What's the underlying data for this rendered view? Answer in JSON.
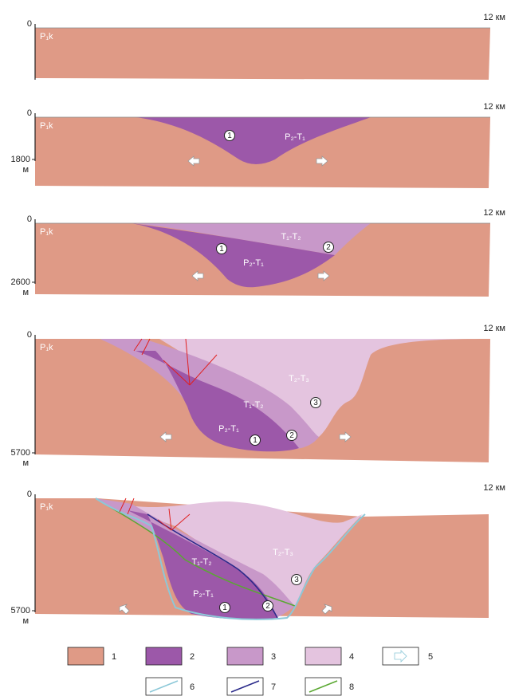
{
  "panels": [
    {
      "top_left": "0",
      "top_right": "12 км",
      "formation": "P₁k"
    },
    {
      "top_left": "0",
      "top_right": "12 км",
      "formation": "P₁k",
      "depth": "1800",
      "depth_unit": "м",
      "units": [
        "P₂-T₁"
      ],
      "markers": [
        "1"
      ]
    },
    {
      "top_left": "0",
      "top_right": "12 км",
      "formation": "P₁k",
      "depth": "2600",
      "depth_unit": "м",
      "units": [
        "T₁-T₂",
        "P₂-T₁"
      ],
      "markers": [
        "1",
        "2"
      ]
    },
    {
      "top_left": "0",
      "top_right": "12 км",
      "formation": "P₁k",
      "depth": "5700",
      "depth_unit": "м",
      "units": [
        "T₂-T₃",
        "T₁-T₂",
        "P₂-T₁"
      ],
      "markers": [
        "1",
        "2",
        "3"
      ]
    },
    {
      "top_left": "0",
      "top_right": "12 км",
      "formation": "P₁k",
      "depth": "5700",
      "depth_unit": "м",
      "units": [
        "T₂-T₃",
        "T₁-T₂",
        "P₂-T₁"
      ],
      "markers": [
        "1",
        "2",
        "3"
      ]
    }
  ],
  "legend": [
    "1",
    "2",
    "3",
    "4",
    "5",
    "6",
    "7",
    "8"
  ]
}
